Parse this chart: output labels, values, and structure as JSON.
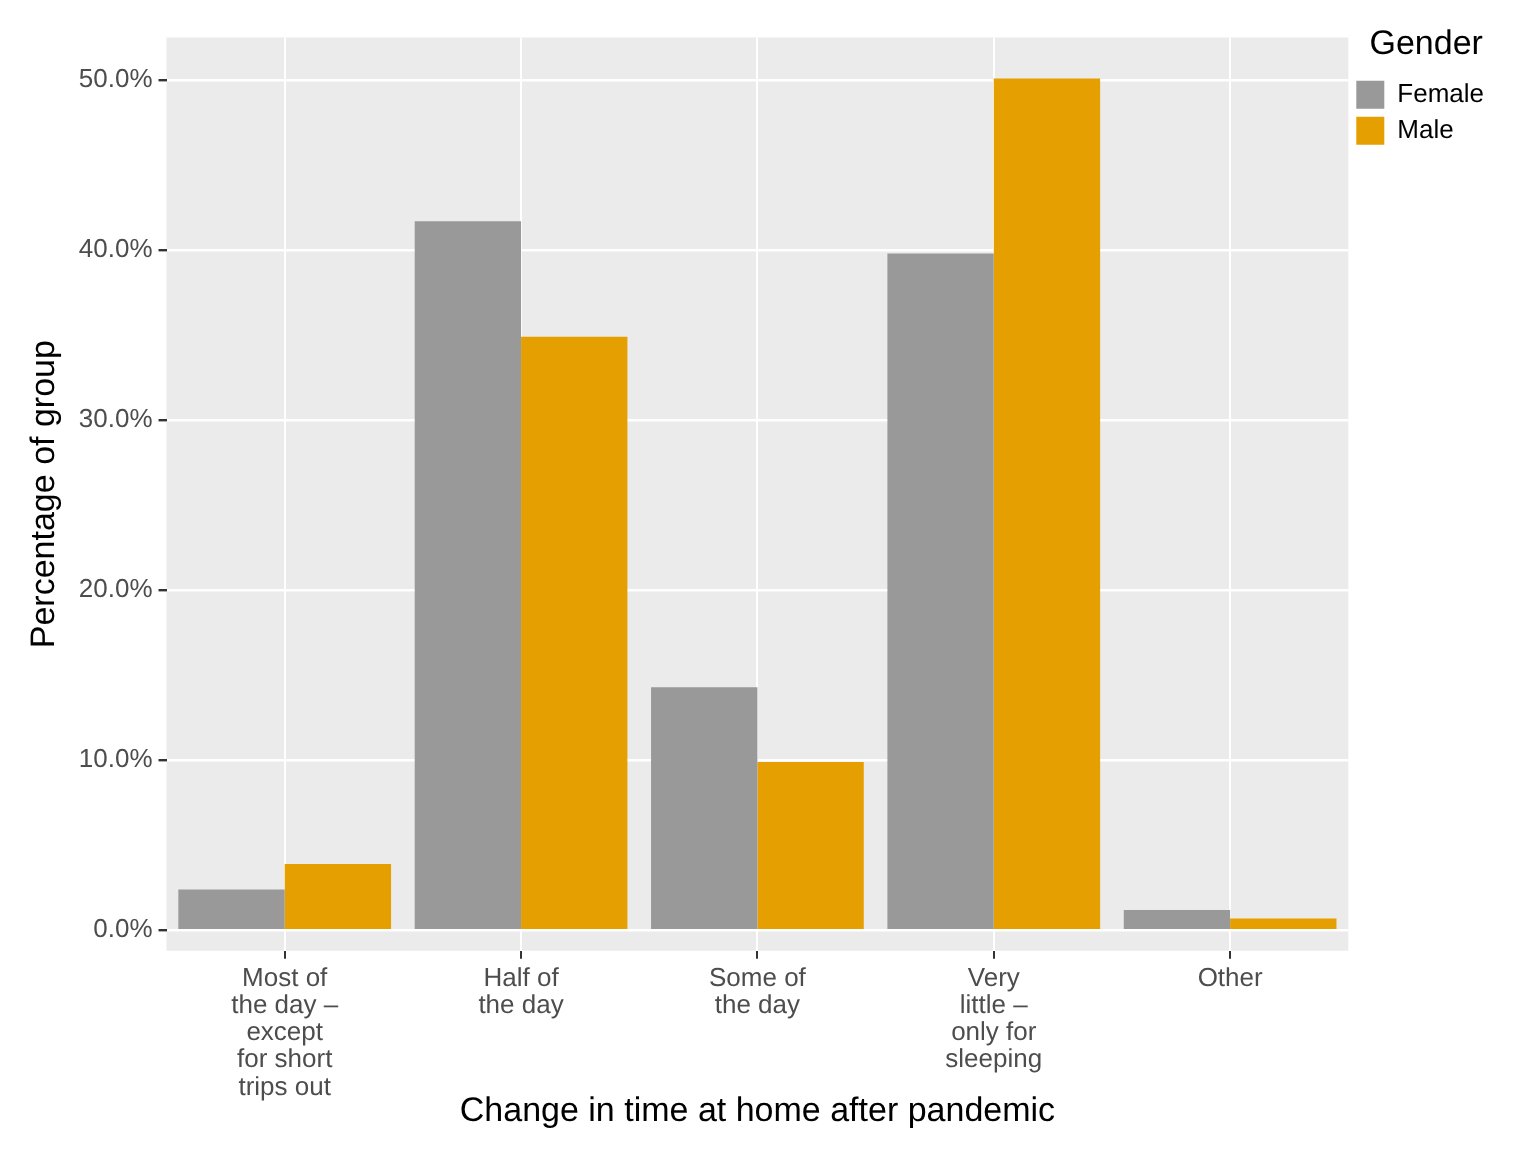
{
  "chart_data": {
    "type": "bar",
    "xlabel": "Change in time at home after pandemic",
    "ylabel": "Percentage of group",
    "legend_title": "Gender",
    "categories": [
      "Most of the day – except for short trips out",
      "Half of the day",
      "Some of the day",
      "Very little – only for sleeping",
      "Other"
    ],
    "series": [
      {
        "name": "Female",
        "color": "#999999",
        "values": [
          2.4,
          41.7,
          14.3,
          39.8,
          1.2
        ]
      },
      {
        "name": "Male",
        "color": "#e69f00",
        "values": [
          3.9,
          34.9,
          9.9,
          50.1,
          0.7
        ]
      }
    ],
    "ylim": [
      -1.2,
      52.5
    ],
    "yticks": [
      {
        "value": 0,
        "label": "0.0%"
      },
      {
        "value": 10,
        "label": "10.0%"
      },
      {
        "value": 20,
        "label": "20.0%"
      },
      {
        "value": 30,
        "label": "30.0%"
      },
      {
        "value": 40,
        "label": "40.0%"
      },
      {
        "value": 50,
        "label": "50.0%"
      }
    ],
    "grid": true,
    "legend": "top right"
  }
}
